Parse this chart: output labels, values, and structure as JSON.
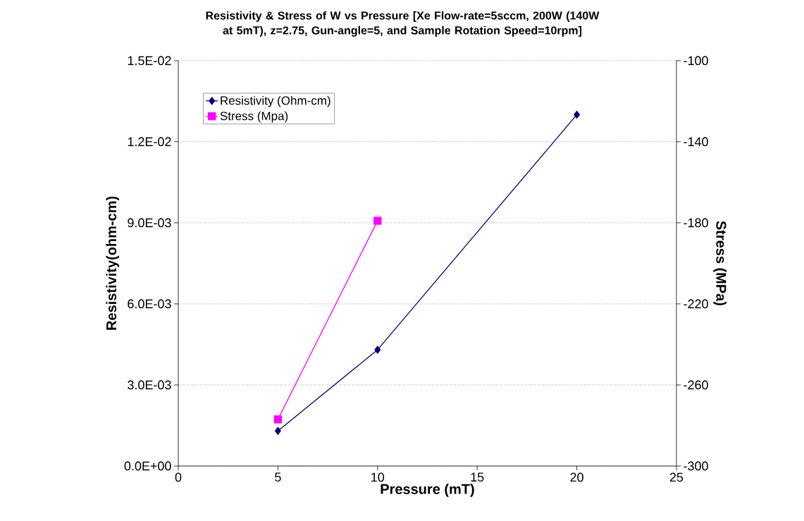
{
  "chart_data": {
    "type": "line",
    "title": "Resistivity & Stress of W vs Pressure [Xe Flow-rate=5sccm, 200W (140W at 5mT), z=2.75, Gun-angle=5, and Sample Rotation Speed=10rpm]",
    "xlabel": "Pressure (mT)",
    "ylabel": "Resistivity(ohm-cm)",
    "y2label": "Stress (MPa)",
    "series": [
      {
        "name": "Resistivity (Ohm-cm)",
        "color": "#000080",
        "marker": "diamond",
        "x": [
          5,
          10,
          20
        ],
        "values": [
          0.0013,
          0.0043,
          0.013
        ]
      },
      {
        "name": "Stress (Mpa)",
        "color": "#ff00ff",
        "marker": "square",
        "axis": "y2",
        "x": [
          5,
          10
        ],
        "values": [
          -277,
          -179
        ]
      }
    ],
    "xlim": [
      0,
      25
    ],
    "xticks": [
      0,
      5,
      10,
      15,
      20,
      25
    ],
    "ylim": [
      0,
      0.015
    ],
    "yticks": [
      {
        "value": 0,
        "label": "0.0E+00"
      },
      {
        "value": 0.003,
        "label": "3.0E-03"
      },
      {
        "value": 0.006,
        "label": "6.0E-03"
      },
      {
        "value": 0.009,
        "label": "9.0E-03"
      },
      {
        "value": 0.012,
        "label": "1.2E-02"
      },
      {
        "value": 0.015,
        "label": "1.5E-02"
      }
    ],
    "y2lim": [
      -300,
      -100
    ],
    "y2ticks": [
      -300,
      -260,
      -220,
      -180,
      -140,
      -100
    ],
    "grid": "y",
    "legend": "top left"
  }
}
